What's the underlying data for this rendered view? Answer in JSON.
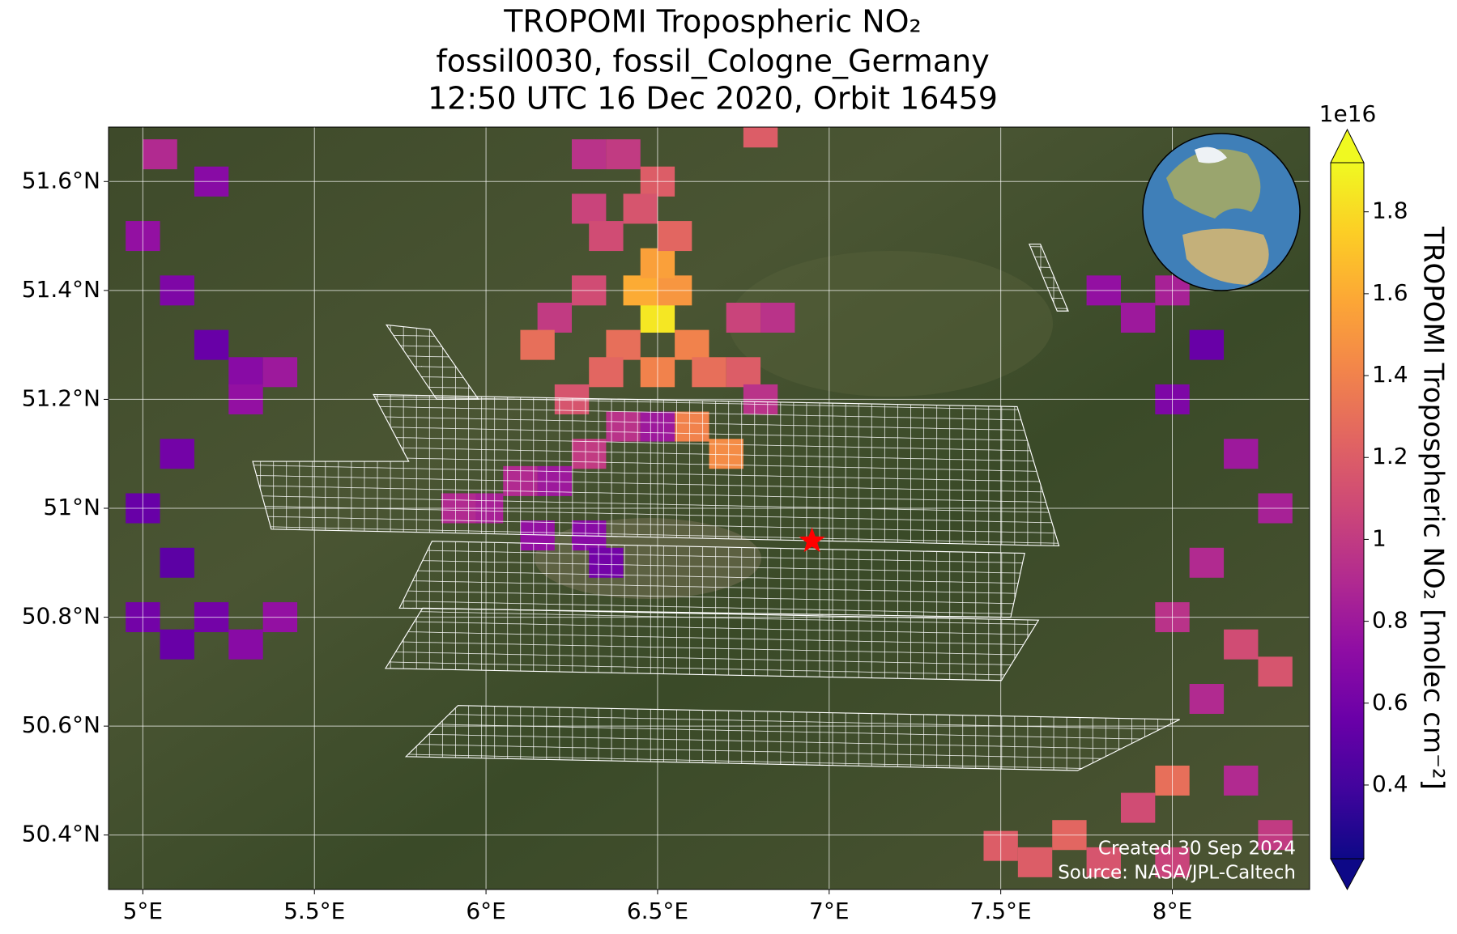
{
  "title": [
    "TROPOMI Tropospheric NO₂",
    "fossil0030, fossil_Cologne_Germany",
    "12:50 UTC 16 Dec 2020, Orbit 16459"
  ],
  "map": {
    "xlim": [
      4.9,
      8.4
    ],
    "ylim": [
      50.3,
      51.7
    ],
    "grid": true,
    "xticks": [
      {
        "value": 5,
        "label": "5°E"
      },
      {
        "value": 5.5,
        "label": "5.5°E"
      },
      {
        "value": 6,
        "label": "6°E"
      },
      {
        "value": 6.5,
        "label": "6.5°E"
      },
      {
        "value": 7,
        "label": "7°E"
      },
      {
        "value": 7.5,
        "label": "7.5°E"
      },
      {
        "value": 8,
        "label": "8°E"
      }
    ],
    "yticks": [
      {
        "value": 50.4,
        "label": "50.4°N"
      },
      {
        "value": 50.6,
        "label": "50.6°N"
      },
      {
        "value": 50.8,
        "label": "50.8°N"
      },
      {
        "value": 51,
        "label": "51°N"
      },
      {
        "value": 51.2,
        "label": "51.2°N"
      },
      {
        "value": 51.4,
        "label": "51.4°N"
      },
      {
        "value": 51.6,
        "label": "51.6°N"
      }
    ],
    "target": {
      "lon": 6.95,
      "lat": 50.94,
      "color": "#ff0000"
    },
    "pixels": [
      {
        "lon": 6.5,
        "lat": 51.35,
        "value": 1.85
      },
      {
        "lon": 6.45,
        "lat": 51.4,
        "value": 1.6
      },
      {
        "lon": 6.55,
        "lat": 51.4,
        "value": 1.5
      },
      {
        "lon": 6.5,
        "lat": 51.45,
        "value": 1.55
      },
      {
        "lon": 6.6,
        "lat": 51.3,
        "value": 1.4
      },
      {
        "lon": 6.4,
        "lat": 51.3,
        "value": 1.3
      },
      {
        "lon": 6.5,
        "lat": 51.25,
        "value": 1.4
      },
      {
        "lon": 6.35,
        "lat": 51.25,
        "value": 1.25
      },
      {
        "lon": 6.65,
        "lat": 51.25,
        "value": 1.3
      },
      {
        "lon": 6.6,
        "lat": 51.15,
        "value": 1.4
      },
      {
        "lon": 6.7,
        "lat": 51.1,
        "value": 1.45
      },
      {
        "lon": 6.3,
        "lat": 51.4,
        "value": 1.1
      },
      {
        "lon": 6.2,
        "lat": 51.35,
        "value": 1.0
      },
      {
        "lon": 6.15,
        "lat": 51.3,
        "value": 1.3
      },
      {
        "lon": 6.25,
        "lat": 51.2,
        "value": 1.15
      },
      {
        "lon": 6.75,
        "lat": 51.35,
        "value": 1.05
      },
      {
        "lon": 6.85,
        "lat": 51.35,
        "value": 0.95
      },
      {
        "lon": 6.75,
        "lat": 51.25,
        "value": 1.2
      },
      {
        "lon": 6.8,
        "lat": 51.2,
        "value": 0.95
      },
      {
        "lon": 6.4,
        "lat": 51.15,
        "value": 0.95
      },
      {
        "lon": 6.5,
        "lat": 51.15,
        "value": 0.8
      },
      {
        "lon": 6.3,
        "lat": 51.1,
        "value": 1.0
      },
      {
        "lon": 6.2,
        "lat": 51.05,
        "value": 0.8
      },
      {
        "lon": 6.1,
        "lat": 51.05,
        "value": 0.9
      },
      {
        "lon": 6.0,
        "lat": 51.0,
        "value": 0.85
      },
      {
        "lon": 5.92,
        "lat": 51.0,
        "value": 0.9
      },
      {
        "lon": 6.15,
        "lat": 50.95,
        "value": 0.75
      },
      {
        "lon": 6.3,
        "lat": 50.95,
        "value": 0.7
      },
      {
        "lon": 6.35,
        "lat": 50.9,
        "value": 0.6
      },
      {
        "lon": 6.3,
        "lat": 51.65,
        "value": 0.95
      },
      {
        "lon": 6.4,
        "lat": 51.65,
        "value": 1.0
      },
      {
        "lon": 6.5,
        "lat": 51.6,
        "value": 1.2
      },
      {
        "lon": 6.3,
        "lat": 51.55,
        "value": 1.05
      },
      {
        "lon": 6.45,
        "lat": 51.55,
        "value": 1.15
      },
      {
        "lon": 6.55,
        "lat": 51.5,
        "value": 1.25
      },
      {
        "lon": 6.35,
        "lat": 51.5,
        "value": 1.1
      },
      {
        "lon": 6.8,
        "lat": 51.69,
        "value": 1.2
      },
      {
        "lon": 5.0,
        "lat": 51.5,
        "value": 0.75
      },
      {
        "lon": 5.1,
        "lat": 51.4,
        "value": 0.65
      },
      {
        "lon": 5.2,
        "lat": 51.3,
        "value": 0.55
      },
      {
        "lon": 5.3,
        "lat": 51.25,
        "value": 0.7
      },
      {
        "lon": 5.1,
        "lat": 51.1,
        "value": 0.6
      },
      {
        "lon": 5.0,
        "lat": 51.0,
        "value": 0.55
      },
      {
        "lon": 5.1,
        "lat": 50.9,
        "value": 0.5
      },
      {
        "lon": 5.2,
        "lat": 50.8,
        "value": 0.6
      },
      {
        "lon": 5.3,
        "lat": 50.75,
        "value": 0.7
      },
      {
        "lon": 5.4,
        "lat": 50.8,
        "value": 0.75
      },
      {
        "lon": 5.1,
        "lat": 50.75,
        "value": 0.55
      },
      {
        "lon": 5.0,
        "lat": 50.8,
        "value": 0.6
      },
      {
        "lon": 5.2,
        "lat": 51.6,
        "value": 0.7
      },
      {
        "lon": 5.05,
        "lat": 51.65,
        "value": 0.9
      },
      {
        "lon": 5.3,
        "lat": 51.2,
        "value": 0.75
      },
      {
        "lon": 5.4,
        "lat": 51.25,
        "value": 0.8
      },
      {
        "lon": 7.8,
        "lat": 51.4,
        "value": 0.75
      },
      {
        "lon": 7.9,
        "lat": 51.35,
        "value": 0.8
      },
      {
        "lon": 8.0,
        "lat": 51.4,
        "value": 0.85
      },
      {
        "lon": 8.1,
        "lat": 51.3,
        "value": 0.55
      },
      {
        "lon": 8.0,
        "lat": 51.2,
        "value": 0.65
      },
      {
        "lon": 8.2,
        "lat": 51.1,
        "value": 0.8
      },
      {
        "lon": 8.3,
        "lat": 51.0,
        "value": 0.85
      },
      {
        "lon": 8.1,
        "lat": 50.9,
        "value": 0.9
      },
      {
        "lon": 8.0,
        "lat": 50.8,
        "value": 0.95
      },
      {
        "lon": 8.2,
        "lat": 50.75,
        "value": 1.1
      },
      {
        "lon": 8.3,
        "lat": 50.7,
        "value": 1.15
      },
      {
        "lon": 8.1,
        "lat": 50.65,
        "value": 0.9
      },
      {
        "lon": 8.0,
        "lat": 50.5,
        "value": 1.3
      },
      {
        "lon": 7.9,
        "lat": 50.45,
        "value": 1.1
      },
      {
        "lon": 7.7,
        "lat": 50.4,
        "value": 1.25
      },
      {
        "lon": 7.6,
        "lat": 50.35,
        "value": 1.2
      },
      {
        "lon": 8.2,
        "lat": 50.5,
        "value": 0.9
      },
      {
        "lon": 8.3,
        "lat": 50.4,
        "value": 1.0
      },
      {
        "lon": 7.5,
        "lat": 50.38,
        "value": 1.2
      },
      {
        "lon": 8.0,
        "lat": 50.35,
        "value": 1.05
      },
      {
        "lon": 7.8,
        "lat": 50.35,
        "value": 1.15
      }
    ]
  },
  "colorbar": {
    "label": "TROPOMI Tropospheric NO₂ [molec cm⁻²]",
    "offset_label": "1e16",
    "lim": [
      0.22,
      1.92
    ],
    "ticks": [
      0.4,
      0.6,
      0.8,
      1.0,
      1.2,
      1.4,
      1.6,
      1.8
    ],
    "colormap": "plasma"
  },
  "credits": [
    "Created 30 Sep 2024",
    "Source: NASA/JPL-Caltech"
  ]
}
